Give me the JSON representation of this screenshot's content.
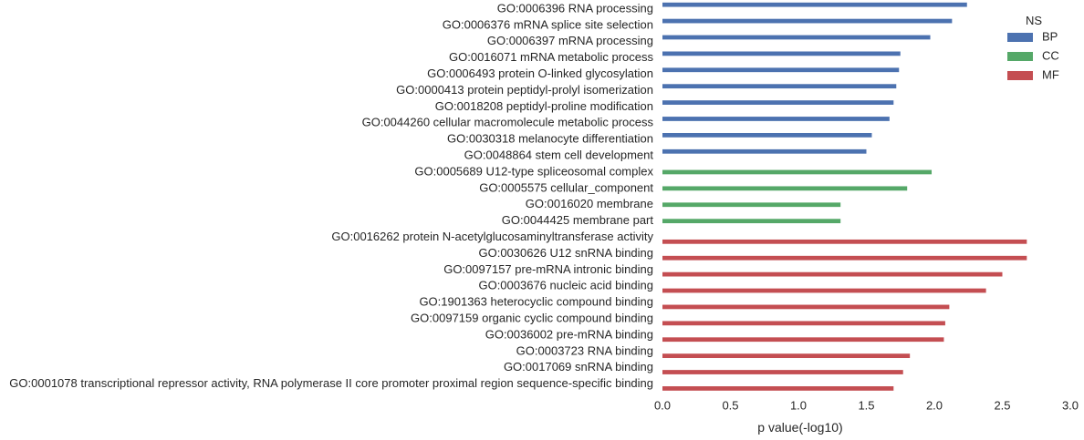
{
  "chart_data": {
    "type": "bar",
    "orientation": "horizontal",
    "categories": [
      "GO:0006396 RNA processing",
      "GO:0006376 mRNA splice site selection",
      "GO:0006397 mRNA processing",
      "GO:0016071 mRNA metabolic process",
      "GO:0006493 protein O-linked glycosylation",
      "GO:0000413 protein peptidyl-prolyl isomerization",
      "GO:0018208 peptidyl-proline modification",
      "GO:0044260 cellular macromolecule metabolic process",
      "GO:0030318 melanocyte differentiation",
      "GO:0048864 stem cell development",
      "GO:0005689 U12-type spliceosomal complex",
      "GO:0005575 cellular_component",
      "GO:0016020 membrane",
      "GO:0044425 membrane part",
      "GO:0016262 protein N-acetylglucosaminyltransferase activity",
      "GO:0030626 U12 snRNA binding",
      "GO:0097157 pre-mRNA intronic binding",
      "GO:0003676 nucleic acid binding",
      "GO:1901363 heterocyclic compound binding",
      "GO:0097159 organic cyclic compound binding",
      "GO:0036002 pre-mRNA binding",
      "GO:0003723 RNA binding",
      "GO:0017069 snRNA binding",
      "GO:0001078 transcriptional repressor activity, RNA polymerase II core promoter proximal region sequence-specific binding"
    ],
    "series": [
      {
        "name": "BP",
        "color": "#4c72b0",
        "values": [
          2.24,
          2.13,
          1.97,
          1.75,
          1.74,
          1.72,
          1.7,
          1.67,
          1.54,
          1.5,
          null,
          null,
          null,
          null,
          null,
          null,
          null,
          null,
          null,
          null,
          null,
          null,
          null,
          null
        ]
      },
      {
        "name": "CC",
        "color": "#55a868",
        "values": [
          null,
          null,
          null,
          null,
          null,
          null,
          null,
          null,
          null,
          null,
          1.98,
          1.8,
          1.31,
          1.31,
          null,
          null,
          null,
          null,
          null,
          null,
          null,
          null,
          null,
          null
        ]
      },
      {
        "name": "MF",
        "color": "#c44e52",
        "values": [
          null,
          null,
          null,
          null,
          null,
          null,
          null,
          null,
          null,
          null,
          null,
          null,
          null,
          null,
          2.68,
          2.68,
          2.5,
          2.38,
          2.11,
          2.08,
          2.07,
          1.82,
          1.77,
          1.7
        ]
      }
    ],
    "xlabel": "p value(-log10)",
    "ylabel": "",
    "xlim": [
      0.0,
      3.0
    ],
    "xticks": [
      "0.0",
      "0.5",
      "1.0",
      "1.5",
      "2.0",
      "2.5",
      "3.0"
    ],
    "legend": {
      "title": "NS",
      "placement": "top-right"
    },
    "grid": false
  }
}
